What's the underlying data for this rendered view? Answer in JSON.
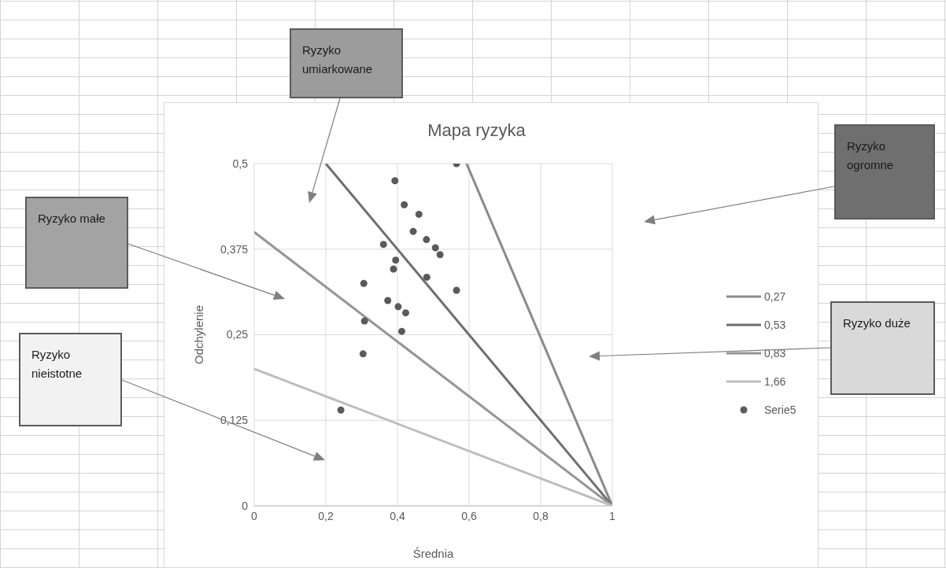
{
  "chart_data": {
    "type": "line",
    "title": "Mapa ryzyka",
    "xlabel": "Średnia",
    "ylabel": "Odchylenie",
    "xlim": [
      0,
      1
    ],
    "ylim": [
      0,
      0.5
    ],
    "xticks": [
      0,
      {
        "value": 0.2,
        "label": "0,2"
      },
      {
        "value": 0.4,
        "label": "0,4"
      },
      {
        "value": 0.6,
        "label": "0,6"
      },
      {
        "value": 0.8,
        "label": "0,8"
      },
      1
    ],
    "yticks": [
      0,
      {
        "value": 0.125,
        "label": "0,125"
      },
      {
        "value": 0.25,
        "label": "0,25"
      },
      {
        "value": 0.375,
        "label": "0,375"
      },
      {
        "value": 0.5,
        "label": "0,5"
      }
    ],
    "grid": true,
    "legend": "right",
    "series": [
      {
        "name": "0,27",
        "color": "#8a8a8a",
        "x": [
          0.593,
          1
        ],
        "values": [
          0.5,
          0
        ]
      },
      {
        "name": "0,53",
        "color": "#6e6e6e",
        "x": [
          0.2,
          1
        ],
        "values": [
          0.5,
          0
        ]
      },
      {
        "name": "0,83",
        "color": "#959595",
        "x": [
          0,
          1
        ],
        "values": [
          0.4,
          0
        ]
      },
      {
        "name": "1,66",
        "color": "#bdbdbd",
        "x": [
          0,
          1
        ],
        "values": [
          0.2,
          0
        ]
      },
      {
        "name": "Serie5",
        "type": "scatter",
        "marker": "circle",
        "color": "#5a5a5a",
        "x": [
          0.565,
          0.393,
          0.419,
          0.46,
          0.444,
          0.361,
          0.481,
          0.506,
          0.519,
          0.395,
          0.389,
          0.482,
          0.306,
          0.565,
          0.373,
          0.402,
          0.423,
          0.308,
          0.412,
          0.304,
          0.242
        ],
        "values": [
          0.5,
          0.475,
          0.44,
          0.426,
          0.401,
          0.382,
          0.389,
          0.377,
          0.367,
          0.359,
          0.346,
          0.334,
          0.325,
          0.315,
          0.3,
          0.291,
          0.282,
          0.27,
          0.255,
          0.222,
          0.14
        ]
      }
    ],
    "annotations": [
      "Ryzyko umiarkowane",
      "Ryzyko ogromne",
      "Ryzyko małe",
      "Ryzyko duże",
      "Ryzyko nieistotne"
    ]
  }
}
